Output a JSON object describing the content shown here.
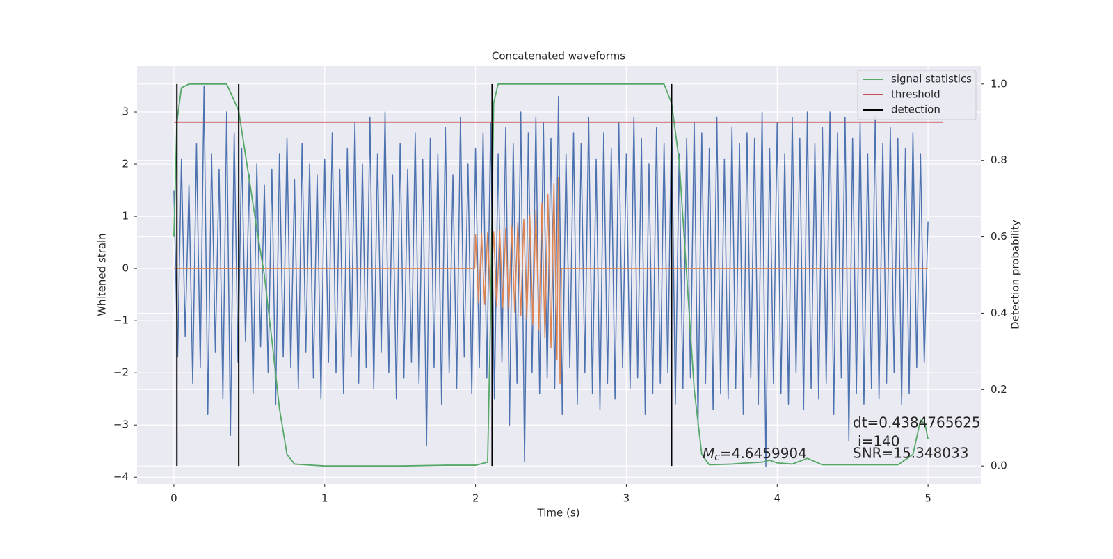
{
  "chart_data": {
    "type": "line",
    "title": "Concatenated waveforms",
    "xlabel": "Time (s)",
    "ylabel": "Whitened strain",
    "y2label": "Detection probability",
    "xlim": [
      -0.244,
      5.35
    ],
    "ylim": [
      -4.13,
      3.88
    ],
    "y2lim": [
      -0.047,
      1.047
    ],
    "xticks": [
      0,
      1,
      2,
      3,
      4,
      5
    ],
    "yticks": [
      {
        "value": -4,
        "label": "−4"
      },
      {
        "value": -3,
        "label": "−3"
      },
      {
        "value": -2,
        "label": "−2"
      },
      {
        "value": -1,
        "label": "−1"
      },
      0,
      1,
      2,
      3
    ],
    "y2ticks": [
      {
        "value": 0,
        "label": "0.0"
      },
      {
        "value": 0.2,
        "label": "0.2"
      },
      {
        "value": 0.4,
        "label": "0.4"
      },
      {
        "value": 0.6,
        "label": "0.6"
      },
      {
        "value": 0.8,
        "label": "0.8"
      },
      {
        "value": 1,
        "label": "1.0"
      }
    ],
    "grid": true,
    "legend": "upper right",
    "series": [
      {
        "color": "#4c72b0",
        "x": [
          0,
          0.025,
          0.05,
          0.075,
          0.1,
          0.125,
          0.15,
          0.175,
          0.2,
          0.225,
          0.25,
          0.275,
          0.3,
          0.325,
          0.35,
          0.375,
          0.4,
          0.425,
          0.45,
          0.475,
          0.5,
          0.525,
          0.55,
          0.575,
          0.6,
          0.625,
          0.65,
          0.675,
          0.7,
          0.725,
          0.75,
          0.775,
          0.8,
          0.825,
          0.85,
          0.875,
          0.9,
          0.925,
          0.95,
          0.975,
          1,
          1.025,
          1.05,
          1.075,
          1.1,
          1.125,
          1.15,
          1.175,
          1.2,
          1.225,
          1.25,
          1.275,
          1.3,
          1.325,
          1.35,
          1.375,
          1.4,
          1.425,
          1.45,
          1.475,
          1.5,
          1.525,
          1.55,
          1.575,
          1.6,
          1.625,
          1.65,
          1.675,
          1.7,
          1.725,
          1.75,
          1.775,
          1.8,
          1.825,
          1.85,
          1.875,
          1.9,
          1.925,
          1.95,
          1.975,
          2,
          2.025,
          2.05,
          2.075,
          2.1,
          2.125,
          2.15,
          2.175,
          2.2,
          2.225,
          2.25,
          2.275,
          2.3,
          2.325,
          2.35,
          2.375,
          2.4,
          2.425,
          2.45,
          2.475,
          2.5,
          2.525,
          2.55,
          2.575,
          2.6,
          2.625,
          2.65,
          2.675,
          2.7,
          2.725,
          2.75,
          2.775,
          2.8,
          2.825,
          2.85,
          2.875,
          2.9,
          2.925,
          2.95,
          2.975,
          3,
          3.025,
          3.05,
          3.075,
          3.1,
          3.125,
          3.15,
          3.175,
          3.2,
          3.225,
          3.25,
          3.275,
          3.3,
          3.325,
          3.35,
          3.375,
          3.4,
          3.425,
          3.45,
          3.475,
          3.5,
          3.525,
          3.55,
          3.575,
          3.6,
          3.625,
          3.65,
          3.675,
          3.7,
          3.725,
          3.75,
          3.775,
          3.8,
          3.825,
          3.85,
          3.875,
          3.9,
          3.925,
          3.95,
          3.975,
          4,
          4.025,
          4.05,
          4.075,
          4.1,
          4.125,
          4.15,
          4.175,
          4.2,
          4.225,
          4.25,
          4.275,
          4.3,
          4.325,
          4.35,
          4.375,
          4.4,
          4.425,
          4.45,
          4.475,
          4.5,
          4.525,
          4.55,
          4.575,
          4.6,
          4.625,
          4.65,
          4.675,
          4.7,
          4.725,
          4.75,
          4.775,
          4.8,
          4.825,
          4.85,
          4.875,
          4.9,
          4.925,
          4.95,
          4.975,
          5
        ],
        "values": [
          1.5,
          -1.7,
          2.1,
          -1.3,
          1.6,
          -2.2,
          2.4,
          -1.9,
          3.5,
          -2.8,
          2.2,
          -1.6,
          1.9,
          -2.5,
          3.0,
          -3.2,
          2.6,
          -1.8,
          2.3,
          -1.4,
          1.8,
          -2.4,
          2.0,
          -1.5,
          1.6,
          -2.0,
          1.9,
          -2.6,
          2.2,
          -1.7,
          2.5,
          -1.9,
          1.7,
          -2.3,
          2.4,
          -1.6,
          2.0,
          -2.1,
          1.8,
          -2.5,
          2.1,
          -1.8,
          2.6,
          -2.0,
          1.9,
          -2.4,
          2.3,
          -1.7,
          2.8,
          -2.2,
          2.0,
          -1.9,
          2.9,
          -2.3,
          2.2,
          -1.6,
          3.0,
          -2.0,
          1.8,
          -2.5,
          2.4,
          -2.1,
          1.9,
          -1.8,
          2.6,
          -2.2,
          2.1,
          -3.4,
          2.5,
          -1.9,
          2.2,
          -2.6,
          2.7,
          -2.0,
          1.8,
          -2.3,
          2.9,
          -1.7,
          2.0,
          -2.4,
          2.3,
          -1.9,
          2.6,
          -2.1,
          2.8,
          -2.5,
          2.2,
          -1.8,
          2.7,
          -3.0,
          2.4,
          -2.2,
          3.0,
          -3.7,
          2.6,
          -2.0,
          2.9,
          -2.4,
          2.8,
          -2.1,
          2.5,
          -2.3,
          3.3,
          -2.8,
          2.2,
          -1.9,
          2.6,
          -2.6,
          2.4,
          -2.0,
          2.9,
          -2.4,
          2.1,
          -2.7,
          2.6,
          -2.2,
          2.3,
          -2.5,
          2.8,
          -1.9,
          2.2,
          -2.3,
          2.9,
          -2.1,
          2.5,
          -2.8,
          2.0,
          -2.4,
          2.7,
          -2.2,
          2.4,
          -2.0,
          3.0,
          -2.6,
          2.2,
          -2.3,
          2.5,
          -2.1,
          2.8,
          -3.0,
          2.6,
          -2.2,
          2.3,
          -2.7,
          2.9,
          -2.4,
          2.1,
          -2.5,
          2.7,
          -2.3,
          2.4,
          -2.8,
          2.6,
          -2.1,
          2.5,
          -2.6,
          3.0,
          -3.8,
          2.3,
          -2.2,
          2.8,
          -2.4,
          2.2,
          -2.6,
          2.9,
          -2.0,
          2.5,
          -2.7,
          3.0,
          -2.3,
          2.4,
          -2.5,
          2.7,
          -2.2,
          3.0,
          -2.8,
          2.6,
          -2.1,
          2.9,
          -3.3,
          2.5,
          -2.4,
          2.8,
          -2.6,
          2.2,
          -2.3,
          2.9,
          -2.5,
          2.4,
          -2.2,
          2.7,
          -2.0,
          2.5,
          -2.6,
          2.3,
          -2.4,
          2.6,
          -1.9,
          2.2,
          -1.8,
          0.9
        ]
      },
      {
        "color": "#dd8452",
        "x": [
          0,
          1.995,
          2,
          2.02,
          2.04,
          2.06,
          2.08,
          2.1,
          2.12,
          2.14,
          2.16,
          2.18,
          2.2,
          2.22,
          2.24,
          2.26,
          2.28,
          2.3,
          2.32,
          2.34,
          2.36,
          2.38,
          2.4,
          2.42,
          2.44,
          2.46,
          2.48,
          2.5,
          2.52,
          2.54,
          2.55,
          2.56,
          2.57,
          5
        ],
        "values": [
          0,
          0,
          0.65,
          -0.66,
          0.67,
          -0.68,
          0.69,
          -0.7,
          0.71,
          -0.72,
          0.73,
          -0.75,
          0.77,
          -0.79,
          0.81,
          -0.84,
          0.87,
          -0.9,
          0.94,
          -0.98,
          1.02,
          -1.07,
          1.12,
          -1.18,
          1.25,
          -1.33,
          1.42,
          -1.52,
          1.63,
          -1.75,
          1.75,
          -2.2,
          0,
          0
        ]
      },
      {
        "name": "signal statistics",
        "color": "#55a868",
        "axis": "y2",
        "x": [
          0,
          0.02,
          0.05,
          0.1,
          0.35,
          0.43,
          0.5,
          0.55,
          0.6,
          0.62,
          0.65,
          0.7,
          0.75,
          0.8,
          1,
          1.5,
          1.8,
          2,
          2.08,
          2.1,
          2.12,
          2.15,
          3.25,
          3.3,
          3.35,
          3.4,
          3.45,
          3.5,
          3.55,
          3.7,
          3.8,
          3.9,
          3.95,
          4,
          4.1,
          4.2,
          4.3,
          4.5,
          4.8,
          4.9,
          4.95,
          4.98,
          5
        ],
        "values": [
          0.6,
          0.9,
          0.99,
          1,
          1,
          0.93,
          0.75,
          0.62,
          0.5,
          0.43,
          0.33,
          0.15,
          0.03,
          0.005,
          0,
          0,
          0.002,
          0.002,
          0.01,
          0.4,
          0.95,
          1,
          1,
          0.95,
          0.8,
          0.5,
          0.2,
          0.03,
          0.003,
          0.005,
          0.008,
          0.01,
          0.015,
          0.008,
          0.005,
          0.02,
          0.003,
          0.003,
          0.003,
          0.03,
          0.12,
          0.11,
          0.07
        ]
      },
      {
        "name": "threshold",
        "color": "#c44e52",
        "axis": "y2",
        "x": [
          0,
          5.1
        ],
        "values": [
          0.9,
          0.9
        ]
      }
    ],
    "detections": {
      "name": "detection",
      "color": "#000000",
      "x": [
        0.02,
        0.43,
        2.11,
        3.3
      ],
      "y2span": [
        0,
        1
      ]
    },
    "annotations": {
      "dt": "dt=0.4384765625",
      "i": "i=140",
      "snr": "SNR=15.348033",
      "mc_symbol": "M",
      "mc_sub": "c",
      "mc_value": "=4.6459904"
    }
  }
}
